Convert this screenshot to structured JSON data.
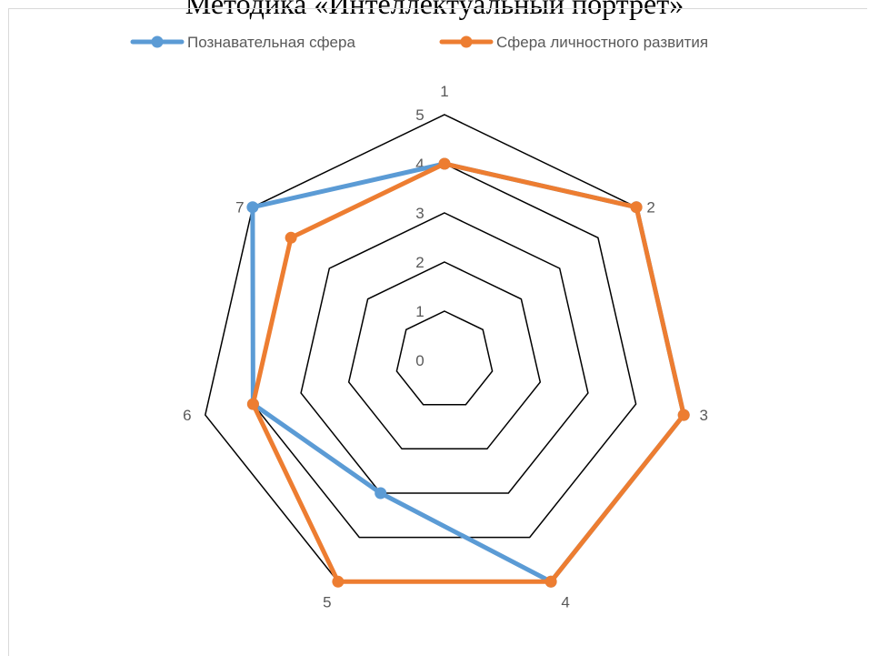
{
  "chart_data": {
    "type": "radar",
    "title": "Методика «Интеллектуальный портрет»",
    "categories": [
      "1",
      "2",
      "3",
      "4",
      "5",
      "6",
      "7"
    ],
    "rlim": [
      0,
      5
    ],
    "ticks": [
      "0",
      "1",
      "2",
      "3",
      "4",
      "5"
    ],
    "legend_position": "top",
    "series": [
      {
        "name": "Познавательная сфера",
        "color": "#5b9bd5",
        "values": [
          4,
          5,
          5,
          5,
          3,
          4,
          5
        ]
      },
      {
        "name": "Сфера личностного развития",
        "color": "#ed7d31",
        "values": [
          4,
          5,
          5,
          5,
          5,
          4,
          4
        ]
      }
    ]
  }
}
